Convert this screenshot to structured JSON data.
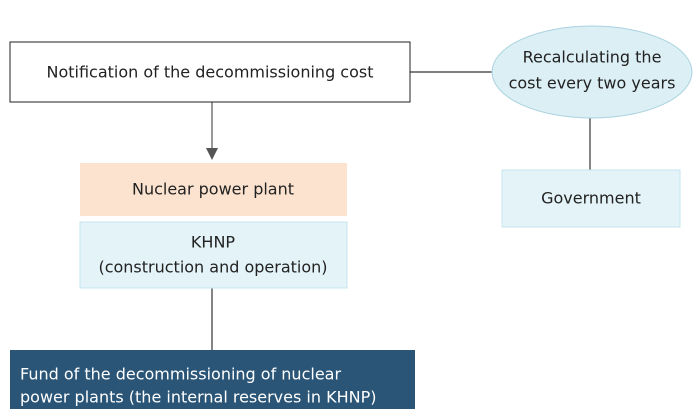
{
  "nodes": [
    {
      "lines": [
        "Notification of the decommissioning cost"
      ]
    },
    {
      "lines": [
        "Recalculating the",
        "cost every two years"
      ]
    },
    {
      "lines": [
        "Nuclear power plant"
      ]
    },
    {
      "lines": [
        "KHNP",
        "(construction and operation)"
      ]
    },
    {
      "lines": [
        "Government"
      ]
    },
    {
      "lines": [
        "Fund of the decommissioning of nuclear",
        "power plants (the internal reserves in KHNP)"
      ]
    }
  ]
}
